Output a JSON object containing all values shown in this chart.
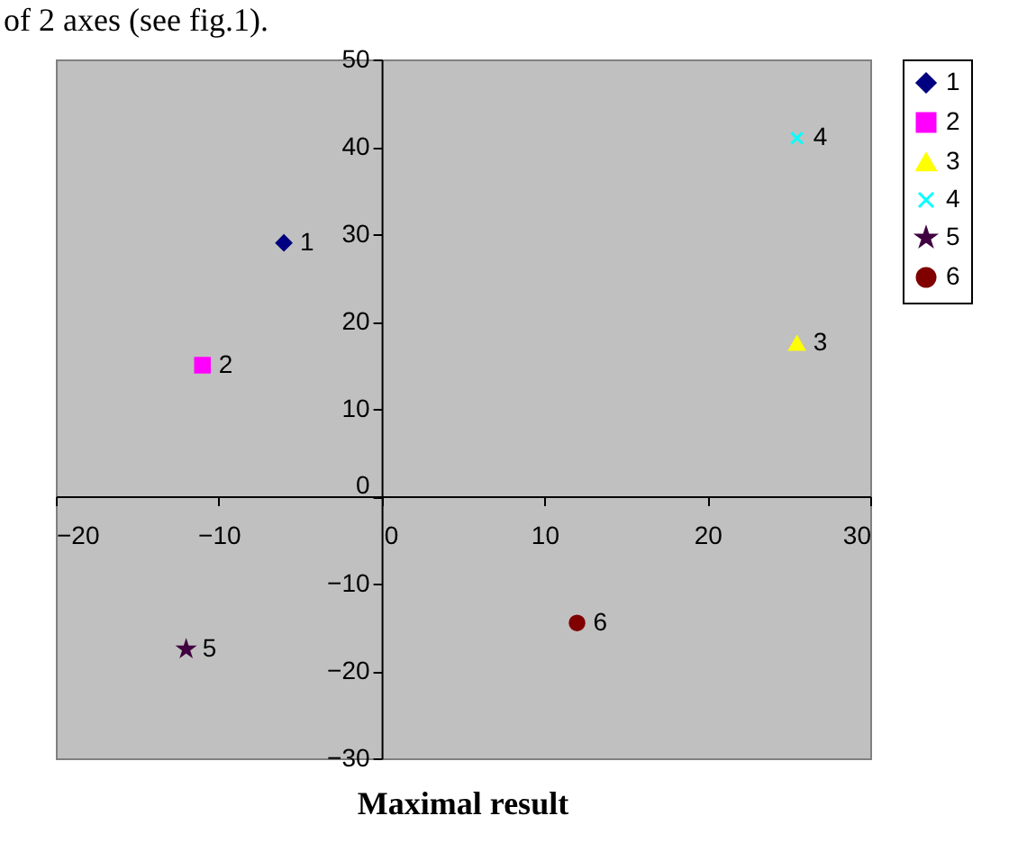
{
  "chart_data": {
    "type": "scatter",
    "title": "Maximal result",
    "annotations": [
      "of 2 axes (see fig.1)."
    ],
    "xlim": [
      -20,
      30
    ],
    "xticks": [
      -20,
      -10,
      0,
      10,
      20,
      30
    ],
    "ylim": [
      -30,
      50
    ],
    "yticks": [
      -30,
      -20,
      -10,
      0,
      10,
      20,
      30,
      40,
      50
    ],
    "grid": false,
    "legend": "right",
    "series": [
      {
        "name": "1",
        "color": "#000080",
        "marker": "diamond",
        "x": [
          -6
        ],
        "values": [
          29
        ]
      },
      {
        "name": "2",
        "color": "#ff00ff",
        "marker": "square",
        "x": [
          -11
        ],
        "values": [
          15
        ]
      },
      {
        "name": "3",
        "color": "#ffff00",
        "marker": "triangle",
        "x": [
          25.5
        ],
        "values": [
          17.5
        ]
      },
      {
        "name": "4",
        "color": "#00ffff",
        "marker": "cross",
        "x": [
          25.5
        ],
        "values": [
          41
        ]
      },
      {
        "name": "5",
        "color": "#400040",
        "marker": "star",
        "x": [
          -12
        ],
        "values": [
          -17.5
        ]
      },
      {
        "name": "6",
        "color": "#800000",
        "marker": "circle",
        "x": [
          12
        ],
        "values": [
          -14.5
        ]
      }
    ]
  }
}
